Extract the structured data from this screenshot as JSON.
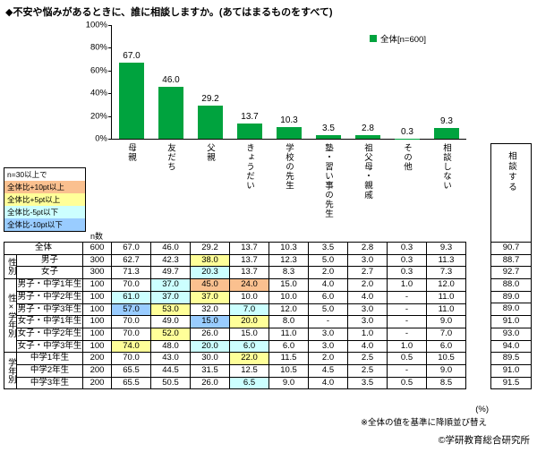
{
  "title": "◆不安や悩みがあるときに、誰に相談しますか。(あてはまるものをすべて)",
  "colors": {
    "bar": "#00A33E",
    "hl_o": "#FAC08F",
    "hl_y": "#FFFF99",
    "hl_c": "#CCFFFF",
    "hl_b": "#99CCFF"
  },
  "threshold_legend": {
    "title": "n=30以上で",
    "items": [
      {
        "label": "全体比+10pt以上",
        "code": "o"
      },
      {
        "label": "全体比+5pt以上",
        "code": "y"
      },
      {
        "label": "全体比-5pt以下",
        "code": "c"
      },
      {
        "label": "全体比-10pt以下",
        "code": "b"
      }
    ]
  },
  "chart_data": [
    {
      "type": "bar",
      "title": "不安や悩みがあるときに、誰に相談しますか。(あてはまるものをすべて)",
      "categories": [
        "母親",
        "友だち",
        "父親",
        "きょうだい",
        "学校の先生",
        "塾・習い事の先生",
        "祖父母・親戚",
        "その他",
        "相談しない"
      ],
      "values": [
        67.0,
        46.0,
        29.2,
        13.7,
        10.3,
        3.5,
        2.8,
        0.3,
        9.3
      ],
      "legend": "全体[n=600]",
      "legend_position": "top-right",
      "xlabel": "",
      "ylabel": "",
      "ylim": [
        0,
        100
      ],
      "ytick_labels": [
        "100%",
        "80%",
        "60%",
        "40%",
        "20%",
        "0%"
      ],
      "grid": false
    },
    {
      "type": "table",
      "n_header": "n数",
      "extra_header": "相談する",
      "columns": [
        "母親",
        "友だち",
        "父親",
        "きょうだい",
        "学校の先生",
        "塾・習い事の先生",
        "祖父母・親戚",
        "その他",
        "相談しない"
      ],
      "rows": [
        {
          "group": "",
          "label": "全体",
          "n": "600",
          "values": [
            "67.0",
            "46.0",
            "29.2",
            "13.7",
            "10.3",
            "3.5",
            "2.8",
            "0.3",
            "9.3"
          ],
          "hl": [
            "",
            "",
            "",
            "",
            "",
            "",
            "",
            "",
            ""
          ],
          "extra": "90.7"
        },
        {
          "group": "性別",
          "label": "男子",
          "n": "300",
          "values": [
            "62.7",
            "42.3",
            "38.0",
            "13.7",
            "12.3",
            "5.0",
            "3.0",
            "0.3",
            "11.3"
          ],
          "hl": [
            "",
            "",
            "y",
            "",
            "",
            "",
            "",
            "",
            ""
          ],
          "extra": "88.7"
        },
        {
          "group": "性別",
          "label": "女子",
          "n": "300",
          "values": [
            "71.3",
            "49.7",
            "20.3",
            "13.7",
            "8.3",
            "2.0",
            "2.7",
            "0.3",
            "7.3"
          ],
          "hl": [
            "",
            "",
            "c",
            "",
            "",
            "",
            "",
            "",
            ""
          ],
          "extra": "92.7"
        },
        {
          "group": "性×学年別",
          "label": "男子・中学1年生",
          "n": "100",
          "values": [
            "70.0",
            "37.0",
            "45.0",
            "24.0",
            "15.0",
            "4.0",
            "2.0",
            "1.0",
            "12.0"
          ],
          "hl": [
            "",
            "c",
            "o",
            "o",
            "",
            "",
            "",
            "",
            ""
          ],
          "extra": "88.0"
        },
        {
          "group": "性×学年別",
          "label": "男子・中学2年生",
          "n": "100",
          "values": [
            "61.0",
            "37.0",
            "37.0",
            "10.0",
            "10.0",
            "6.0",
            "4.0",
            "-",
            "11.0"
          ],
          "hl": [
            "c",
            "c",
            "y",
            "",
            "",
            "",
            "",
            "",
            ""
          ],
          "extra": "89.0"
        },
        {
          "group": "性×学年別",
          "label": "男子・中学3年生",
          "n": "100",
          "values": [
            "57.0",
            "53.0",
            "32.0",
            "7.0",
            "12.0",
            "5.0",
            "3.0",
            "-",
            "11.0"
          ],
          "hl": [
            "b",
            "y",
            "",
            "c",
            "",
            "",
            "",
            "",
            ""
          ],
          "extra": "89.0"
        },
        {
          "group": "性×学年別",
          "label": "女子・中学1年生",
          "n": "100",
          "values": [
            "70.0",
            "49.0",
            "15.0",
            "20.0",
            "8.0",
            "-",
            "3.0",
            "-",
            "9.0"
          ],
          "hl": [
            "",
            "",
            "b",
            "y",
            "",
            "",
            "",
            "",
            ""
          ],
          "extra": "91.0"
        },
        {
          "group": "性×学年別",
          "label": "女子・中学2年生",
          "n": "100",
          "values": [
            "70.0",
            "52.0",
            "26.0",
            "15.0",
            "11.0",
            "3.0",
            "1.0",
            "-",
            "7.0"
          ],
          "hl": [
            "",
            "y",
            "",
            "",
            "",
            "",
            "",
            "",
            ""
          ],
          "extra": "93.0"
        },
        {
          "group": "性×学年別",
          "label": "女子・中学3年生",
          "n": "100",
          "values": [
            "74.0",
            "48.0",
            "20.0",
            "6.0",
            "6.0",
            "3.0",
            "4.0",
            "1.0",
            "6.0"
          ],
          "hl": [
            "y",
            "",
            "c",
            "c",
            "",
            "",
            "",
            "",
            ""
          ],
          "extra": "94.0"
        },
        {
          "group": "学年別",
          "label": "中学1年生",
          "n": "200",
          "values": [
            "70.0",
            "43.0",
            "30.0",
            "22.0",
            "11.5",
            "2.0",
            "2.5",
            "0.5",
            "10.5"
          ],
          "hl": [
            "",
            "",
            "",
            "y",
            "",
            "",
            "",
            "",
            ""
          ],
          "extra": "89.5"
        },
        {
          "group": "学年別",
          "label": "中学2年生",
          "n": "200",
          "values": [
            "65.5",
            "44.5",
            "31.5",
            "12.5",
            "10.5",
            "4.5",
            "2.5",
            "-",
            "9.0"
          ],
          "hl": [
            "",
            "",
            "",
            "",
            "",
            "",
            "",
            "",
            ""
          ],
          "extra": "91.0"
        },
        {
          "group": "学年別",
          "label": "中学3年生",
          "n": "200",
          "values": [
            "65.5",
            "50.5",
            "26.0",
            "6.5",
            "9.0",
            "4.0",
            "3.5",
            "0.5",
            "8.5"
          ],
          "hl": [
            "",
            "",
            "",
            "c",
            "",
            "",
            "",
            "",
            ""
          ],
          "extra": "91.5"
        }
      ]
    }
  ],
  "footer": {
    "percent": "(%)",
    "sort_note": "※全体の値を基準に降順並び替え",
    "copyright": "©学研教育総合研究所"
  }
}
